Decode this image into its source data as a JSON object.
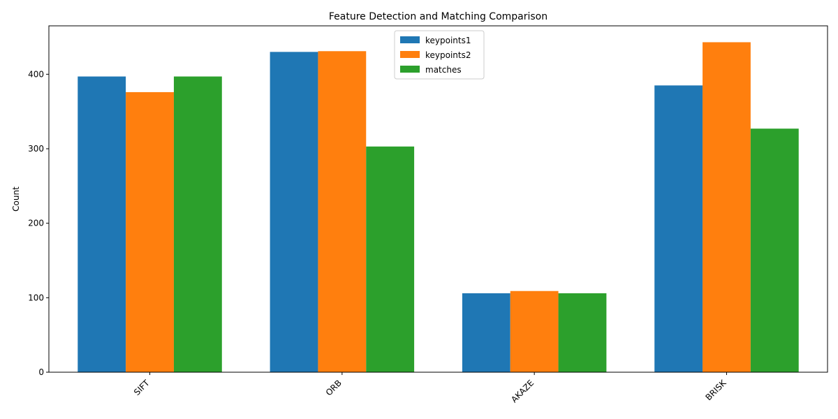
{
  "chart_data": {
    "type": "bar",
    "title": "Feature Detection and Matching Comparison",
    "xlabel": "",
    "ylabel": "Count",
    "categories": [
      "SIFT",
      "ORB",
      "AKAZE",
      "BRISK"
    ],
    "series": [
      {
        "name": "keypoints1",
        "color": "#1f77b4",
        "values": [
          397,
          430,
          106,
          385
        ]
      },
      {
        "name": "keypoints2",
        "color": "#ff7f0e",
        "values": [
          376,
          431,
          109,
          443
        ]
      },
      {
        "name": "matches",
        "color": "#2ca02c",
        "values": [
          397,
          303,
          106,
          327
        ]
      }
    ],
    "ylim": [
      0,
      465
    ],
    "yticks": [
      0,
      100,
      200,
      300,
      400
    ],
    "ytick_labels": [
      "0",
      "100",
      "200",
      "300",
      "400"
    ],
    "xtick_rotation_deg": 45,
    "legend_position": "top-center",
    "grid": false
  }
}
